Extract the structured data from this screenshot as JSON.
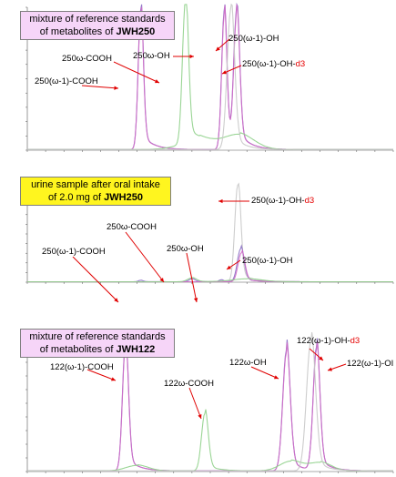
{
  "colors": {
    "purple": "#8a6fc4",
    "pink": "#d06cc6",
    "green": "#8fd08a",
    "gray": "#c8c8c8",
    "arrow": "#e00000",
    "box_pink": "#f6d5f8",
    "box_yellow": "#fff51f",
    "axis": "#555555"
  },
  "panels": [
    {
      "id": "p1",
      "box": {
        "line1": "mixture of reference standards",
        "line2": "of metabolites of ",
        "analyte": "JWH250",
        "style": "pink"
      },
      "annotations": [
        {
          "name": "250w-cooh",
          "text": "250ω-COOH",
          "sub": ""
        },
        {
          "name": "250w-oh",
          "text": "250ω-OH",
          "sub": ""
        },
        {
          "name": "250w1-oh",
          "text": "250(ω-1)-OH",
          "sub": ""
        },
        {
          "name": "250w1-oh-d3",
          "text": "250(ω-1)-OH-",
          "sub": "d3"
        },
        {
          "name": "250w1-cooh",
          "text": "250(ω-1)-COOH",
          "sub": ""
        }
      ]
    },
    {
      "id": "p2",
      "box": {
        "line1": "urine sample after oral intake",
        "line2": "of 2.0 mg of ",
        "analyte": "JWH250",
        "style": "yellow"
      },
      "annotations": [
        {
          "name": "250w1-oh-d3",
          "text": "250(ω-1)-OH-",
          "sub": "d3"
        },
        {
          "name": "250w-cooh",
          "text": "250ω-COOH",
          "sub": ""
        },
        {
          "name": "250w-oh",
          "text": "250ω-OH",
          "sub": ""
        },
        {
          "name": "250w1-cooh",
          "text": "250(ω-1)-COOH",
          "sub": ""
        },
        {
          "name": "250w1-oh",
          "text": "250(ω-1)-OH",
          "sub": ""
        }
      ]
    },
    {
      "id": "p3",
      "box": {
        "line1": "mixture of reference standards",
        "line2": "of metabolites of ",
        "analyte": "JWH122",
        "style": "pink"
      },
      "annotations": [
        {
          "name": "122w1-oh-d3",
          "text": "122(ω-1)-OH-",
          "sub": "d3"
        },
        {
          "name": "122w1-cooh",
          "text": "122(ω-1)-COOH",
          "sub": ""
        },
        {
          "name": "122w-oh",
          "text": "122ω-OH",
          "sub": ""
        },
        {
          "name": "122w1-oh",
          "text": "122(ω-1)-OI",
          "sub": ""
        },
        {
          "name": "122w-cooh",
          "text": "122ω-COOH",
          "sub": ""
        }
      ]
    }
  ],
  "chart_data": [
    {
      "type": "line",
      "title": "mixture of reference standards of metabolites of JWH250",
      "xlabel": "",
      "ylabel": "",
      "xlim": [
        0,
        1
      ],
      "ylim": [
        0,
        1
      ],
      "grid": false,
      "series": [
        {
          "color": "purple",
          "peaks": [
            [
              0.31,
              0.98,
              0.007
            ],
            [
              0.538,
              0.97,
              0.007
            ],
            [
              0.572,
              0.93,
              0.008
            ]
          ]
        },
        {
          "color": "pink",
          "peaks": [
            [
              0.31,
              0.95,
              0.007
            ],
            [
              0.538,
              0.94,
              0.007
            ],
            [
              0.572,
              0.9,
              0.008
            ]
          ]
        },
        {
          "color": "green",
          "peaks": [
            [
              0.432,
              1.0,
              0.008
            ],
            [
              0.47,
              0.06,
              0.05
            ],
            [
              0.58,
              0.1,
              0.04
            ]
          ]
        },
        {
          "color": "gray",
          "peaks": [
            [
              0.556,
              0.98,
              0.01
            ]
          ]
        }
      ]
    },
    {
      "type": "line",
      "title": "urine sample after oral intake of 2.0 mg of JWH250",
      "xlabel": "",
      "ylabel": "",
      "xlim": [
        0,
        1
      ],
      "ylim": [
        0,
        1
      ],
      "grid": false,
      "series": [
        {
          "color": "gray",
          "peaks": [
            [
              0.575,
              1.0,
              0.008
            ]
          ]
        },
        {
          "color": "purple",
          "peaks": [
            [
              0.583,
              0.34,
              0.009
            ],
            [
              0.53,
              0.02,
              0.006
            ],
            [
              0.45,
              0.03,
              0.008
            ],
            [
              0.31,
              0.015,
              0.006
            ]
          ]
        },
        {
          "color": "pink",
          "peaks": [
            [
              0.585,
              0.3,
              0.009
            ]
          ]
        },
        {
          "color": "green",
          "peaks": [
            [
              0.45,
              0.04,
              0.012
            ],
            [
              0.6,
              0.03,
              0.04
            ]
          ]
        }
      ]
    },
    {
      "type": "line",
      "title": "mixture of reference standards of metabolites of JWH122",
      "xlabel": "",
      "ylabel": "",
      "xlim": [
        0,
        1
      ],
      "ylim": [
        0,
        1
      ],
      "grid": false,
      "series": [
        {
          "color": "purple",
          "peaks": [
            [
              0.268,
              0.93,
              0.008
            ],
            [
              0.708,
              0.88,
              0.01
            ],
            [
              0.79,
              0.9,
              0.009
            ]
          ]
        },
        {
          "color": "pink",
          "peaks": [
            [
              0.268,
              0.91,
              0.008
            ],
            [
              0.708,
              0.86,
              0.01
            ],
            [
              0.79,
              0.88,
              0.009
            ]
          ]
        },
        {
          "color": "green",
          "peaks": [
            [
              0.485,
              0.42,
              0.009
            ],
            [
              0.3,
              0.04,
              0.03
            ],
            [
              0.72,
              0.07,
              0.03
            ],
            [
              0.8,
              0.06,
              0.03
            ]
          ]
        },
        {
          "color": "gray",
          "peaks": [
            [
              0.775,
              0.95,
              0.012
            ]
          ]
        }
      ]
    }
  ]
}
